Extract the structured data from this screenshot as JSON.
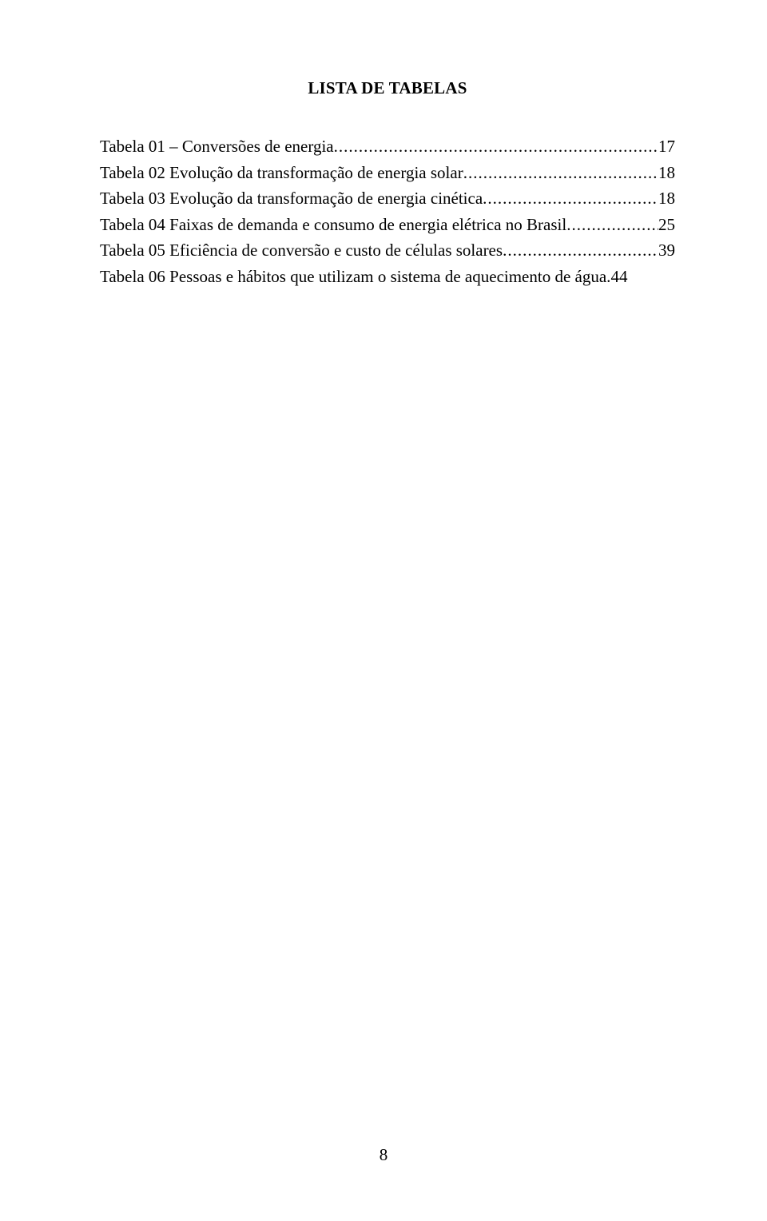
{
  "title": "LISTA DE TABELAS",
  "entries": [
    {
      "text": "Tabela 01 – Conversões de energia",
      "page": "17"
    },
    {
      "text": "Tabela 02 Evolução da transformação de energia solar",
      "page": "18"
    },
    {
      "text": "Tabela 03 Evolução da transformação de energia cinética",
      "page": "18"
    },
    {
      "text": "Tabela 04 Faixas de demanda e consumo de energia elétrica no Brasil",
      "page": "25"
    },
    {
      "text": "Tabela 05 Eficiência de conversão e custo de células solares",
      "page": "39"
    },
    {
      "text": "Tabela 06 Pessoas e hábitos que utilizam o sistema de aquecimento de água.",
      "page": "44"
    }
  ],
  "page_number": "8",
  "last_entry_no_dots": true,
  "colors": {
    "background": "#ffffff",
    "text": "#000000"
  },
  "fontsize": 21,
  "title_fontsize": 21
}
